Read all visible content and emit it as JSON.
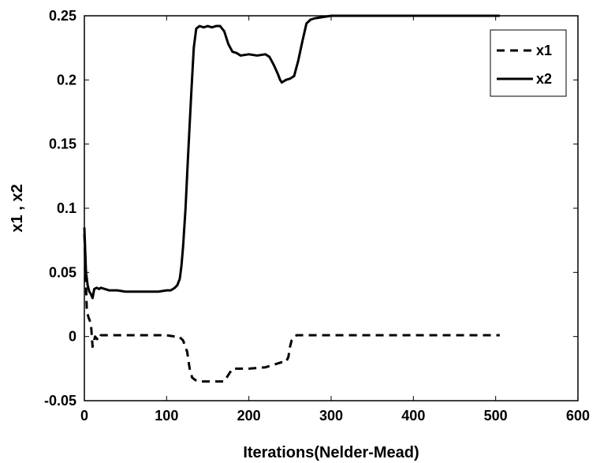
{
  "chart_data": {
    "type": "line",
    "xlabel": "Iterations(Nelder-Mead)",
    "ylabel": "x1 , x2",
    "xlim": [
      0,
      600
    ],
    "ylim": [
      -0.05,
      0.25
    ],
    "xticks": [
      0,
      100,
      200,
      300,
      400,
      500,
      600
    ],
    "yticks": [
      -0.05,
      0,
      0.05,
      0.1,
      0.15,
      0.2,
      0.25
    ],
    "xtick_labels": [
      "0",
      "100",
      "200",
      "300",
      "400",
      "500",
      "600"
    ],
    "ytick_labels": [
      "-0.05",
      "0",
      "0.05",
      "0.1",
      "0.15",
      "0.2",
      "0.25"
    ],
    "grid": false,
    "legend_position": "top-right",
    "series": [
      {
        "name": "x1",
        "style": "dashed",
        "color": "#000000",
        "x": [
          0,
          3,
          5,
          8,
          10,
          13,
          17,
          20,
          50,
          100,
          110,
          115,
          120,
          125,
          128,
          131,
          135,
          140,
          150,
          170,
          175,
          180,
          190,
          200,
          220,
          230,
          240,
          245,
          248,
          250,
          252,
          255,
          258,
          260,
          300,
          400,
          500,
          505
        ],
        "y": [
          0.08,
          0.02,
          0.015,
          0.01,
          -0.008,
          0.0,
          -0.003,
          0.001,
          0.001,
          0.001,
          0.0,
          0.0,
          -0.003,
          -0.012,
          -0.025,
          -0.032,
          -0.034,
          -0.035,
          -0.035,
          -0.035,
          -0.03,
          -0.025,
          -0.025,
          -0.025,
          -0.024,
          -0.022,
          -0.02,
          -0.02,
          -0.016,
          -0.008,
          -0.003,
          0.0,
          0.001,
          0.001,
          0.001,
          0.001,
          0.001,
          0.001
        ]
      },
      {
        "name": "x2",
        "style": "solid",
        "color": "#000000",
        "x": [
          0,
          2,
          4,
          6,
          8,
          10,
          12,
          15,
          18,
          20,
          25,
          30,
          40,
          50,
          70,
          90,
          100,
          105,
          110,
          113,
          116,
          118,
          120,
          123,
          126,
          130,
          133,
          136,
          140,
          145,
          150,
          155,
          160,
          165,
          170,
          175,
          180,
          185,
          190,
          200,
          210,
          220,
          225,
          230,
          235,
          238,
          240,
          245,
          250,
          255,
          260,
          265,
          270,
          275,
          280,
          290,
          300,
          400,
          500,
          505
        ],
        "y": [
          0.085,
          0.05,
          0.04,
          0.035,
          0.033,
          0.03,
          0.037,
          0.038,
          0.037,
          0.038,
          0.037,
          0.036,
          0.036,
          0.035,
          0.035,
          0.035,
          0.036,
          0.036,
          0.038,
          0.04,
          0.045,
          0.055,
          0.07,
          0.1,
          0.14,
          0.19,
          0.225,
          0.24,
          0.242,
          0.241,
          0.242,
          0.241,
          0.242,
          0.242,
          0.238,
          0.228,
          0.222,
          0.221,
          0.219,
          0.22,
          0.219,
          0.22,
          0.218,
          0.212,
          0.205,
          0.2,
          0.198,
          0.2,
          0.201,
          0.203,
          0.215,
          0.23,
          0.244,
          0.247,
          0.248,
          0.249,
          0.25,
          0.25,
          0.25,
          0.25
        ]
      }
    ]
  }
}
